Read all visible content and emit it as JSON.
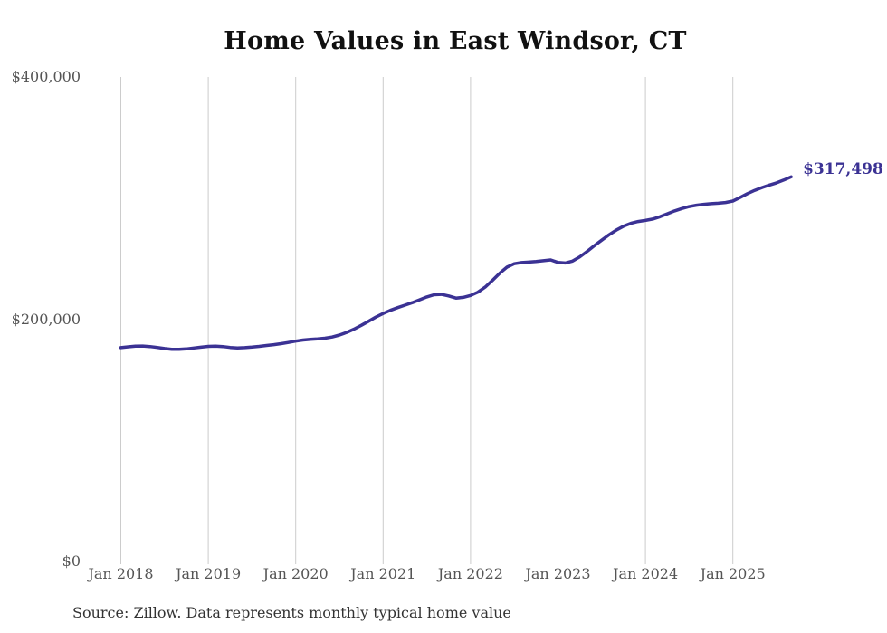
{
  "chart_data": {
    "type": "line",
    "title": "Home Values in East Windsor, CT",
    "source_note": "Source: Zillow. Data represents monthly typical home value",
    "end_value_label": "$317,498",
    "x_tick_labels": [
      "Jan 2018",
      "Jan 2019",
      "Jan 2020",
      "Jan 2021",
      "Jan 2022",
      "Jan 2023",
      "Jan 2024",
      "Jan 2025"
    ],
    "y_ticks": [
      {
        "value": 0,
        "label": "$0"
      },
      {
        "value": 200000,
        "label": "$200,000"
      },
      {
        "value": 400000,
        "label": "$400,000"
      }
    ],
    "ylim": [
      0,
      400000
    ],
    "grid": "vertical-only",
    "legend": "none",
    "colors": {
      "line": "#3b3294",
      "end_label": "#3b3294",
      "grid": "#cccccc",
      "axis_text": "#555555",
      "title_text": "#111111",
      "source_text": "#333333",
      "background": "#ffffff"
    },
    "series": [
      {
        "name": "Typical home value",
        "start_month": "2018-01",
        "end_month": "2025-09",
        "frequency": "monthly",
        "values": [
          176500,
          177200,
          177800,
          177900,
          177400,
          176700,
          175800,
          175200,
          175100,
          175500,
          176200,
          176900,
          177600,
          177800,
          177400,
          176700,
          176300,
          176500,
          177000,
          177600,
          178300,
          179000,
          179800,
          180800,
          181900,
          182800,
          183400,
          183800,
          184300,
          185300,
          186900,
          189100,
          191800,
          194900,
          198300,
          201700,
          204700,
          207300,
          209600,
          211600,
          213700,
          216000,
          218400,
          220200,
          220500,
          219200,
          217400,
          218000,
          219600,
          222300,
          226500,
          232000,
          238000,
          243000,
          245800,
          246800,
          247200,
          247600,
          248300,
          249000,
          246900,
          246400,
          248000,
          251500,
          256000,
          260700,
          265300,
          269700,
          273600,
          276800,
          279200,
          280700,
          281600,
          282700,
          284600,
          287000,
          289400,
          291400,
          293000,
          294100,
          294900,
          295400,
          295800,
          296400,
          297600,
          300500,
          303700,
          306400,
          308700,
          310700,
          312600,
          314900,
          317498
        ],
        "final_value": 317498
      }
    ]
  }
}
